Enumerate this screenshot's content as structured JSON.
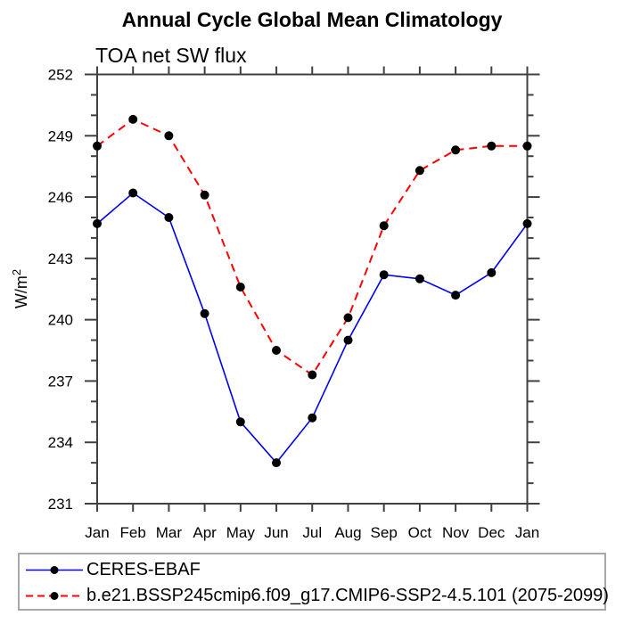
{
  "title": "Annual Cycle Global Mean Climatology",
  "subtitle": "TOA net SW flux",
  "y_axis": {
    "label_main": "W/m",
    "label_sup": "2"
  },
  "x_axis": {
    "tick_labels": [
      "Jan",
      "Feb",
      "Mar",
      "Apr",
      "May",
      "Jun",
      "Jul",
      "Aug",
      "Sep",
      "Oct",
      "Nov",
      "Dec",
      "Jan"
    ]
  },
  "y_tick_labels": [
    "231",
    "234",
    "237",
    "240",
    "243",
    "246",
    "249",
    "252"
  ],
  "colors": {
    "axis": "#404040",
    "text": "#000000",
    "marker": "#000000",
    "ceres_line": "#0000ee",
    "model_line": "#ff0000",
    "legend_border": "#a8a8a8",
    "background": "#ffffff"
  },
  "chart_data": {
    "type": "line",
    "title": "Annual Cycle Global Mean Climatology",
    "subtitle": "TOA net SW flux",
    "xlabel": "",
    "ylabel": "W/m²",
    "categories": [
      "Jan",
      "Feb",
      "Mar",
      "Apr",
      "May",
      "Jun",
      "Jul",
      "Aug",
      "Sep",
      "Oct",
      "Nov",
      "Dec",
      "Jan"
    ],
    "series": [
      {
        "name": "CERES-EBAF",
        "color": "#0000ee",
        "line_style": "solid",
        "marker": "filled-black-circle",
        "values": [
          244.7,
          246.2,
          245.0,
          240.3,
          235.0,
          233.0,
          235.2,
          239.0,
          242.2,
          242.0,
          241.2,
          242.3,
          244.7
        ]
      },
      {
        "name": "b.e21.BSSP245cmip6.f09_g17.CMIP6-SSP2-4.5.101 (2075-2099)",
        "color": "#ff0000",
        "line_style": "dashed",
        "marker": "filled-black-circle",
        "values": [
          248.5,
          249.8,
          249.0,
          246.1,
          241.6,
          238.5,
          237.3,
          240.1,
          244.6,
          247.3,
          248.3,
          248.5,
          248.5
        ]
      }
    ],
    "ylim": [
      231,
      252
    ],
    "ytick_major_interval": 3,
    "ytick_minor_interval": 1,
    "grid": false,
    "ticks_direction": "out",
    "legend_position": "bottom"
  }
}
